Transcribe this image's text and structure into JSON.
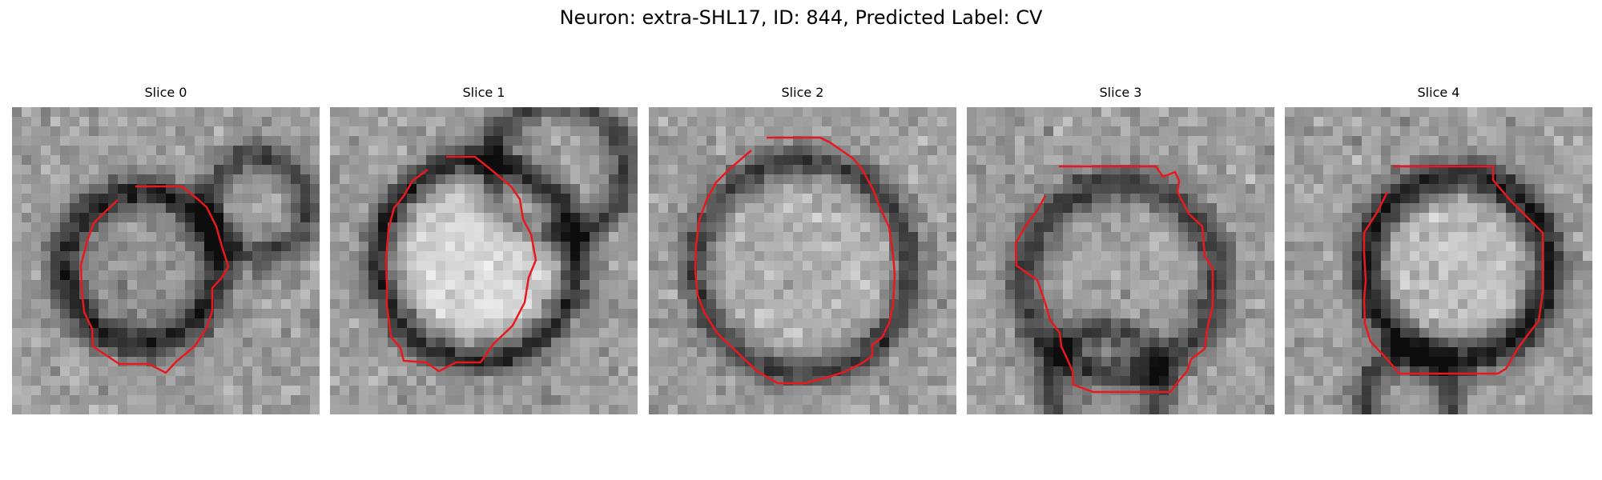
{
  "figure": {
    "title": "Neuron: extra-SHL17, ID: 844, Predicted Label: CV",
    "neuron": "extra-SHL17",
    "id": 844,
    "predicted_label": "CV",
    "contour_color": "#e8191e",
    "background_color": "#ffffff",
    "colormap": "gray"
  },
  "slices": [
    {
      "title": "Slice 0"
    },
    {
      "title": "Slice 1"
    },
    {
      "title": "Slice 2"
    },
    {
      "title": "Slice 3"
    },
    {
      "title": "Slice 4"
    }
  ]
}
